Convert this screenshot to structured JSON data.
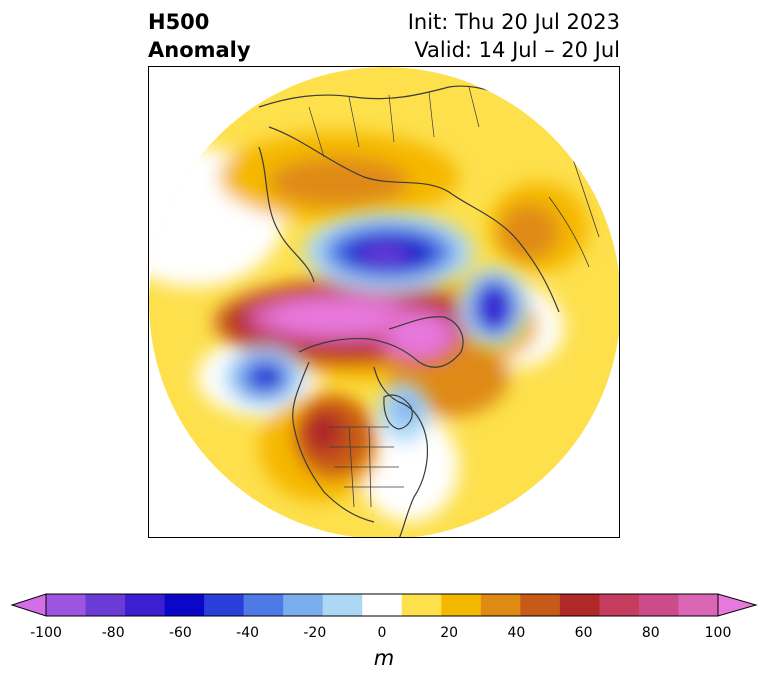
{
  "header": {
    "title_line1": "H500",
    "title_line2": "Anomaly",
    "init_text": "Init: Thu 20 Jul 2023",
    "valid_text": "Valid: 14 Jul – 20 Jul"
  },
  "colorbar": {
    "unit": "m",
    "ticks": [
      "-100",
      "-80",
      "-60",
      "-40",
      "-20",
      "0",
      "20",
      "40",
      "60",
      "80",
      "100"
    ],
    "colors": [
      "#d36ee6",
      "#9d55e0",
      "#6b3bd6",
      "#3c1fd0",
      "#0a07c9",
      "#2a3fd9",
      "#4f7ae6",
      "#7aaeee",
      "#acd8f6",
      "#ffffff",
      "#fde04c",
      "#f5b800",
      "#df8a12",
      "#c75a18",
      "#b02828",
      "#c43c5e",
      "#cc4c8a",
      "#dc66b6",
      "#e778dc"
    ],
    "min": -100,
    "max": 100,
    "step": 10
  },
  "map": {
    "projection": "north-polar-stereographic",
    "anomaly_features": [
      {
        "region": "central-arctic",
        "sign": "positive",
        "level": 80
      },
      {
        "region": "western-russia",
        "sign": "positive",
        "level": 40
      },
      {
        "region": "laptev-sea",
        "sign": "negative",
        "level": -60
      },
      {
        "region": "barents-kara",
        "sign": "negative",
        "level": -60
      },
      {
        "region": "gulf-of-alaska",
        "sign": "negative",
        "level": -60
      },
      {
        "region": "hudson-bay",
        "sign": "negative",
        "level": -30
      },
      {
        "region": "southwest-us",
        "sign": "positive",
        "level": 60
      },
      {
        "region": "greenland-atlantic",
        "sign": "positive",
        "level": 30
      }
    ]
  }
}
